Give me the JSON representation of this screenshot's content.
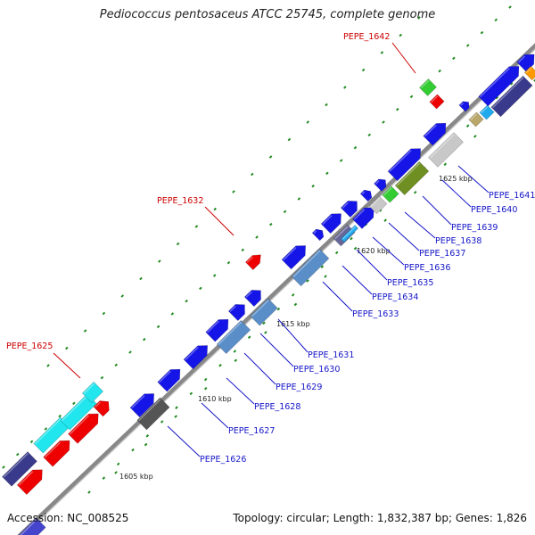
{
  "title": "Pediococcus pentosaceus ATCC 25745, complete genome",
  "footer": {
    "accession": "Accession: NC_008525",
    "summary": "Topology: circular; Length: 1,832,387 bp; Genes: 1,826"
  },
  "colors": {
    "backbone": "#888888",
    "tick": "#1f8a1f",
    "label_blue": "#1515c8",
    "label_red": "#cc0000",
    "gene_blue": "#1515e8",
    "gene_red": "#ee0000",
    "gene_cyan": "#22e6ee",
    "gene_navy": "#3a3a8c",
    "gene_steel": "#5a8ec8",
    "gene_gray": "#555555",
    "gene_green": "#33cc33",
    "gene_olive": "#6f8f22",
    "gene_silver": "#c8c8c8",
    "gene_tan": "#b8a66a",
    "gene_sky": "#1faaee",
    "gene_orange": "#ff9900"
  },
  "scale": [
    {
      "label": "1605 kbp"
    },
    {
      "label": "1610 kbp"
    },
    {
      "label": "1615 kbp"
    },
    {
      "label": "1620 kbp"
    },
    {
      "label": "1625 kbp"
    }
  ],
  "gene_labels": [
    {
      "label": "PEPE_1625",
      "color": "red"
    },
    {
      "label": "PEPE_1626",
      "color": "blue"
    },
    {
      "label": "PEPE_1627",
      "color": "blue"
    },
    {
      "label": "PEPE_1628",
      "color": "blue"
    },
    {
      "label": "PEPE_1629",
      "color": "blue"
    },
    {
      "label": "PEPE_1630",
      "color": "blue"
    },
    {
      "label": "PEPE_1631",
      "color": "blue"
    },
    {
      "label": "PEPE_1632",
      "color": "red"
    },
    {
      "label": "PEPE_1633",
      "color": "blue"
    },
    {
      "label": "PEPE_1634",
      "color": "blue"
    },
    {
      "label": "PEPE_1635",
      "color": "blue"
    },
    {
      "label": "PEPE_1636",
      "color": "blue"
    },
    {
      "label": "PEPE_1637",
      "color": "blue"
    },
    {
      "label": "PEPE_1638",
      "color": "blue"
    },
    {
      "label": "PEPE_1639",
      "color": "blue"
    },
    {
      "label": "PEPE_1640",
      "color": "blue"
    },
    {
      "label": "PEPE_1641",
      "color": "blue"
    },
    {
      "label": "PEPE_1642",
      "color": "red"
    }
  ]
}
